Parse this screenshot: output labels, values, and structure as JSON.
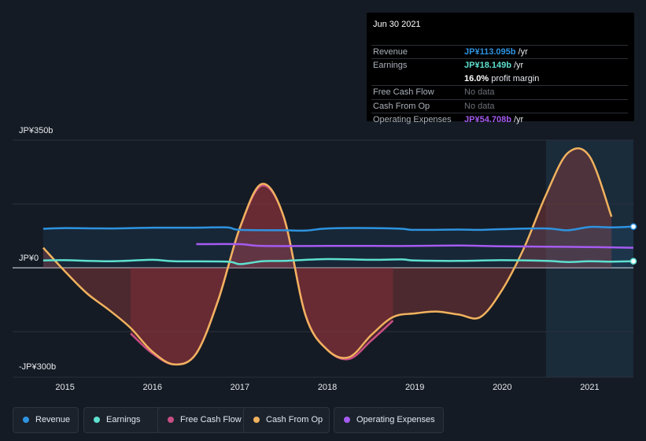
{
  "tooltip": {
    "date": "Jun 30 2021",
    "rows": [
      {
        "label": "Revenue",
        "value": "JP¥113.095b",
        "unit": " /yr",
        "color": "#2e93e0"
      },
      {
        "label": "Earnings",
        "value": "JP¥18.149b",
        "unit": " /yr",
        "color": "#5ee0cf"
      },
      {
        "label": "",
        "value": "16.0%",
        "unit": " profit margin",
        "color": "#ffffff"
      },
      {
        "label": "Free Cash Flow",
        "value": "No data",
        "unit": "",
        "color": "#6b7078"
      },
      {
        "label": "Cash From Op",
        "value": "No data",
        "unit": "",
        "color": "#6b7078"
      },
      {
        "label": "Operating Expenses",
        "value": "JP¥54.708b",
        "unit": " /yr",
        "color": "#a55bf0"
      }
    ]
  },
  "legend": [
    {
      "label": "Revenue",
      "color": "#2e93e0"
    },
    {
      "label": "Earnings",
      "color": "#5ee0cf"
    },
    {
      "label": "Free Cash Flow",
      "color": "#c84f83"
    },
    {
      "label": "Cash From Op",
      "color": "#f1b25e"
    },
    {
      "label": "Operating Expenses",
      "color": "#a55bf0"
    }
  ],
  "chart_data": {
    "type": "line",
    "y_unit": "JP¥ billions",
    "ylim": [
      -300,
      350
    ],
    "ytick_labels": {
      "top": "JP¥350b",
      "zero": "JP¥0",
      "bottom": "-JP¥300b"
    },
    "xlim": [
      2014.4,
      2021.5
    ],
    "xtick_labels": [
      "2015",
      "2016",
      "2017",
      "2018",
      "2019",
      "2020",
      "2021"
    ],
    "xticks": [
      2015,
      2016,
      2017,
      2018,
      2019,
      2020,
      2021
    ],
    "highlight_start": 2020.5,
    "series": [
      {
        "name": "Revenue",
        "color": "#2e93e0",
        "x": [
          2014.75,
          2015.0,
          2015.5,
          2016.0,
          2016.5,
          2016.85,
          2017.0,
          2017.5,
          2017.75,
          2018.0,
          2018.5,
          2018.85,
          2019.0,
          2019.5,
          2019.75,
          2020.0,
          2020.5,
          2020.75,
          2021.0,
          2021.25,
          2021.5
        ],
        "y": [
          107,
          109,
          108,
          110,
          110,
          111,
          104,
          103,
          102,
          108,
          109,
          107,
          104,
          105,
          104,
          106,
          108,
          103,
          112,
          111,
          113
        ]
      },
      {
        "name": "Earnings",
        "color": "#5ee0cf",
        "x": [
          2014.75,
          2015.0,
          2015.5,
          2016.0,
          2016.25,
          2016.85,
          2017.0,
          2017.25,
          2017.5,
          2018.0,
          2018.5,
          2018.85,
          2019.0,
          2019.5,
          2020.0,
          2020.5,
          2020.75,
          2021.0,
          2021.25,
          2021.5
        ],
        "y": [
          20,
          21,
          18,
          22,
          18,
          17,
          10,
          18,
          19,
          24,
          22,
          23,
          20,
          19,
          21,
          19,
          16,
          18,
          17,
          18
        ]
      },
      {
        "name": "Operating Expenses",
        "color": "#a55bf0",
        "x": [
          2016.5,
          2017.0,
          2017.25,
          2018.0,
          2018.5,
          2019.0,
          2019.5,
          2020.0,
          2020.5,
          2021.0,
          2021.5
        ],
        "y": [
          65,
          65,
          60,
          60,
          60,
          60,
          61,
          59,
          58,
          57,
          55
        ]
      },
      {
        "name": "Free Cash Flow",
        "color": "#c84f83",
        "x": [
          2015.75,
          2016.0,
          2016.25,
          2016.5,
          2016.75,
          2017.0,
          2017.25,
          2017.5,
          2017.75,
          2018.0,
          2018.25,
          2018.5,
          2018.75
        ],
        "y": [
          -180,
          -235,
          -265,
          -235,
          -90,
          110,
          225,
          140,
          -130,
          -225,
          -250,
          -200,
          -145
        ]
      },
      {
        "name": "Cash From Op",
        "color": "#f1b25e",
        "x": [
          2014.75,
          2015.0,
          2015.25,
          2015.5,
          2015.75,
          2016.0,
          2016.25,
          2016.5,
          2016.75,
          2017.0,
          2017.25,
          2017.5,
          2017.75,
          2018.0,
          2018.25,
          2018.5,
          2018.75,
          2019.0,
          2019.25,
          2019.5,
          2019.75,
          2020.0,
          2020.25,
          2020.5,
          2020.75,
          2021.0,
          2021.25
        ],
        "y": [
          55,
          -10,
          -70,
          -115,
          -165,
          -230,
          -265,
          -235,
          -90,
          110,
          230,
          140,
          -130,
          -225,
          -245,
          -185,
          -135,
          -125,
          -120,
          -128,
          -135,
          -60,
          55,
          200,
          315,
          305,
          140
        ]
      }
    ]
  }
}
